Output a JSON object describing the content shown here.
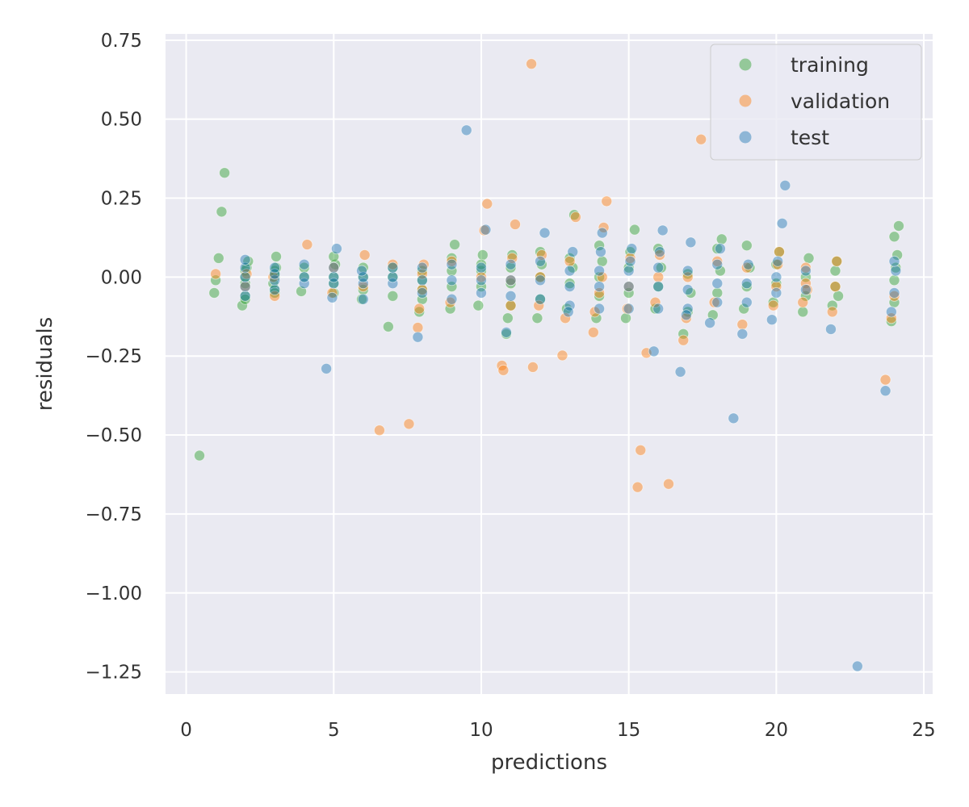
{
  "chart_data": {
    "type": "scatter",
    "title": "",
    "xlabel": "predictions",
    "ylabel": "residuals",
    "xlim": [
      -0.7,
      25.3
    ],
    "ylim": [
      -1.32,
      0.77
    ],
    "xticks": [
      0,
      5,
      10,
      15,
      20,
      25
    ],
    "xtick_labels": [
      "0",
      "5",
      "10",
      "15",
      "20",
      "25"
    ],
    "yticks": [
      0.75,
      0.5,
      0.25,
      0.0,
      -0.25,
      -0.5,
      -0.75,
      -1.0,
      -1.25
    ],
    "ytick_labels": [
      "0.75",
      "0.50",
      "0.25",
      "0.00",
      "−0.25",
      "−0.50",
      "−0.75",
      "−1.00",
      "−1.25"
    ],
    "grid": true,
    "legend_position": "top-right",
    "series": [
      {
        "name": "training",
        "color": "#2ca02c",
        "x": [
          0.45,
          0.95,
          1.0,
          1.1,
          1.2,
          1.3,
          1.9,
          2.0,
          2.0,
          2.0,
          2.05,
          2.1,
          2.0,
          2.0,
          3.0,
          3.0,
          3.0,
          3.05,
          2.95,
          3.0,
          3.0,
          3.05,
          3.9,
          4.0,
          4.0,
          5.0,
          5.0,
          5.05,
          5.0,
          5.0,
          5.95,
          6.0,
          6.0,
          6.0,
          6.85,
          7.0,
          7.0,
          7.0,
          7.9,
          8.0,
          8.0,
          8.0,
          8.0,
          8.95,
          9.0,
          9.0,
          9.1,
          9.0,
          9.9,
          10.0,
          10.0,
          10.05,
          10.0,
          10.85,
          10.9,
          11.0,
          11.0,
          11.0,
          11.05,
          11.9,
          12.0,
          12.0,
          12.05,
          12.0,
          12.9,
          13.0,
          13.1,
          13.15,
          13.0,
          13.9,
          14.0,
          14.0,
          14.1,
          14.0,
          14.9,
          15.0,
          15.0,
          15.2,
          15.05,
          15.9,
          16.0,
          16.1,
          16.0,
          16.85,
          17.0,
          17.1,
          17.0,
          17.85,
          18.0,
          18.1,
          18.15,
          18.0,
          18.9,
          19.0,
          19.1,
          19.0,
          19.9,
          20.0,
          20.0,
          20.1,
          20.9,
          21.0,
          21.0,
          21.1,
          21.9,
          22.0,
          22.0,
          22.05,
          22.1,
          23.9,
          24.0,
          24.0,
          24.05,
          24.1,
          24.15,
          24.0
        ],
        "y": [
          -0.565,
          -0.05,
          -0.01,
          0.06,
          0.207,
          0.33,
          -0.09,
          -0.06,
          -0.02,
          0.02,
          0.03,
          0.05,
          -0.07,
          0.0,
          -0.04,
          0.0,
          0.02,
          0.065,
          -0.02,
          0.01,
          -0.05,
          0.03,
          -0.045,
          0.0,
          0.03,
          -0.05,
          0.0,
          0.04,
          0.065,
          -0.02,
          -0.07,
          0.0,
          0.03,
          -0.04,
          -0.157,
          -0.06,
          0.0,
          0.03,
          -0.11,
          -0.07,
          -0.01,
          0.02,
          -0.04,
          -0.1,
          -0.03,
          0.02,
          0.103,
          0.06,
          -0.09,
          -0.03,
          0.02,
          0.07,
          0.04,
          -0.18,
          -0.13,
          -0.09,
          -0.02,
          0.03,
          0.07,
          -0.13,
          -0.07,
          0.0,
          0.04,
          0.08,
          -0.1,
          -0.02,
          0.03,
          0.197,
          0.06,
          -0.13,
          -0.06,
          0.0,
          0.05,
          0.1,
          -0.13,
          -0.05,
          0.03,
          0.15,
          0.08,
          -0.1,
          -0.03,
          0.03,
          0.09,
          -0.18,
          -0.11,
          -0.05,
          0.01,
          -0.12,
          -0.05,
          0.02,
          0.12,
          0.09,
          -0.1,
          -0.03,
          0.03,
          0.1,
          -0.08,
          -0.02,
          0.04,
          0.08,
          -0.11,
          -0.06,
          0.0,
          0.06,
          -0.09,
          -0.03,
          0.02,
          0.05,
          -0.06,
          -0.14,
          -0.08,
          -0.01,
          0.03,
          0.07,
          0.162,
          0.128
        ]
      },
      {
        "name": "validation",
        "color": "#ff7f0e",
        "x": [
          1.0,
          2.0,
          2.05,
          3.0,
          2.95,
          4.1,
          4.95,
          5.0,
          6.05,
          6.0,
          6.55,
          7.0,
          7.55,
          7.85,
          7.9,
          8.0,
          8.0,
          8.05,
          8.95,
          9.0,
          10.1,
          10.2,
          10.0,
          10.7,
          10.75,
          11.0,
          11.0,
          11.05,
          11.15,
          11.7,
          11.75,
          11.95,
          12.0,
          12.05,
          12.75,
          12.85,
          13.2,
          13.0,
          13.8,
          13.85,
          14.0,
          14.1,
          14.15,
          14.25,
          14.95,
          15.0,
          15.05,
          15.4,
          15.6,
          15.3,
          15.9,
          16.0,
          16.05,
          16.35,
          16.85,
          16.95,
          17.0,
          17.45,
          17.9,
          18.0,
          18.85,
          19.0,
          19.9,
          20.0,
          20.05,
          20.1,
          20.9,
          21.0,
          21.0,
          21.05,
          21.9,
          22.0,
          22.05,
          23.7,
          23.9,
          24.0
        ],
        "y": [
          0.01,
          -0.03,
          0.01,
          -0.06,
          0.0,
          0.103,
          -0.05,
          0.03,
          0.07,
          -0.03,
          -0.485,
          0.04,
          -0.465,
          -0.16,
          -0.1,
          -0.04,
          0.01,
          0.04,
          -0.08,
          0.05,
          0.148,
          0.232,
          0.0,
          -0.28,
          -0.295,
          -0.09,
          -0.01,
          0.06,
          0.167,
          0.675,
          -0.285,
          -0.09,
          0.0,
          0.07,
          -0.248,
          -0.13,
          0.19,
          0.05,
          -0.175,
          -0.11,
          -0.05,
          0.0,
          0.157,
          0.24,
          -0.1,
          -0.03,
          0.06,
          -0.548,
          -0.24,
          -0.665,
          -0.08,
          0.0,
          0.07,
          -0.655,
          -0.2,
          -0.13,
          0.0,
          0.436,
          -0.08,
          0.05,
          -0.15,
          0.03,
          -0.09,
          -0.03,
          0.04,
          0.08,
          -0.08,
          -0.02,
          0.03,
          -0.04,
          -0.11,
          -0.03,
          0.05,
          -0.325,
          -0.13,
          -0.06
        ]
      },
      {
        "name": "test",
        "color": "#1f77b4",
        "x": [
          2.0,
          2.0,
          2.0,
          2.0,
          2.0,
          3.0,
          3.0,
          3.0,
          3.0,
          4.0,
          4.0,
          4.0,
          4.75,
          5.0,
          5.0,
          5.0,
          5.1,
          4.95,
          6.0,
          6.0,
          6.0,
          5.95,
          7.0,
          7.0,
          7.0,
          7.85,
          8.0,
          8.0,
          8.0,
          9.0,
          9.0,
          9.0,
          9.5,
          10.0,
          10.0,
          10.0,
          10.15,
          10.85,
          11.0,
          11.0,
          11.0,
          12.0,
          12.0,
          12.0,
          12.15,
          13.0,
          13.0,
          13.0,
          13.1,
          12.95,
          14.0,
          14.0,
          14.0,
          14.05,
          14.1,
          15.0,
          15.0,
          15.0,
          15.05,
          15.1,
          15.85,
          16.0,
          16.0,
          16.0,
          16.05,
          16.15,
          16.75,
          17.0,
          17.0,
          17.0,
          17.1,
          16.95,
          17.75,
          18.0,
          18.0,
          18.0,
          18.1,
          18.55,
          18.85,
          19.0,
          19.0,
          19.05,
          19.85,
          20.0,
          20.0,
          20.05,
          20.2,
          20.3,
          21.0,
          21.0,
          21.85,
          22.75,
          23.7,
          23.9,
          24.0,
          24.05,
          24.0
        ],
        "y": [
          -0.06,
          -0.03,
          0.0,
          0.03,
          0.055,
          -0.04,
          -0.01,
          0.01,
          0.03,
          -0.02,
          0.0,
          0.04,
          -0.29,
          -0.02,
          0.0,
          0.03,
          0.09,
          -0.065,
          -0.07,
          -0.02,
          0.0,
          0.02,
          -0.02,
          0.0,
          0.03,
          -0.19,
          -0.05,
          -0.01,
          0.03,
          -0.07,
          -0.01,
          0.04,
          0.465,
          -0.05,
          -0.01,
          0.03,
          0.15,
          -0.175,
          -0.06,
          -0.01,
          0.04,
          -0.07,
          -0.01,
          0.05,
          0.14,
          -0.09,
          -0.03,
          0.02,
          0.08,
          -0.11,
          -0.1,
          -0.03,
          0.02,
          0.08,
          0.14,
          -0.1,
          -0.03,
          0.02,
          0.05,
          0.09,
          -0.235,
          -0.1,
          -0.03,
          0.03,
          0.08,
          0.148,
          -0.3,
          -0.1,
          -0.04,
          0.02,
          0.11,
          -0.12,
          -0.145,
          -0.08,
          -0.02,
          0.04,
          0.09,
          -0.447,
          -0.18,
          -0.08,
          -0.02,
          0.04,
          -0.135,
          -0.05,
          0.0,
          0.05,
          0.17,
          0.29,
          -0.04,
          0.02,
          -0.165,
          -1.232,
          -0.36,
          -0.11,
          -0.05,
          0.02,
          0.05
        ]
      }
    ]
  }
}
